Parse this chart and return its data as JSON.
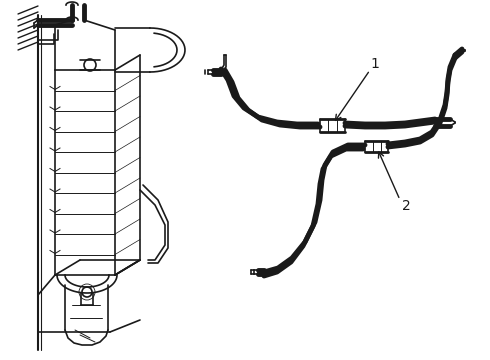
{
  "bg_color": "#ffffff",
  "line_color": "#1a1a1a",
  "label1": "1",
  "label2": "2",
  "fig_width": 4.9,
  "fig_height": 3.6,
  "dpi": 100,
  "gray": "#888888",
  "lgray": "#cccccc"
}
